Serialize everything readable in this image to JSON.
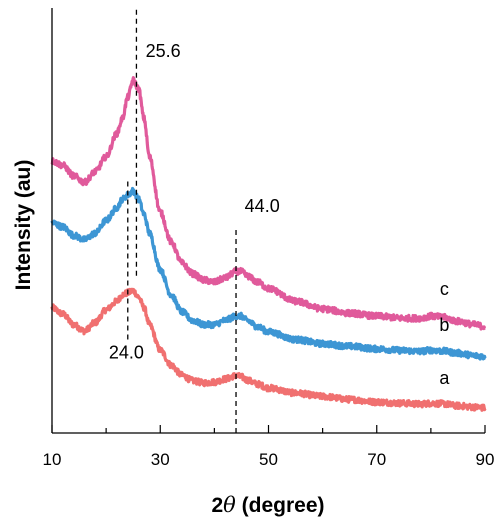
{
  "chart_data": {
    "type": "line",
    "xlabel_prefix": "2",
    "xlabel_symbol": "θ",
    "xlabel_suffix": " (degree)",
    "ylabel": "Intensity (au)",
    "xlim": [
      10,
      90
    ],
    "ylim": [
      0,
      100
    ],
    "x_ticks": [
      "10",
      "30",
      "50",
      "70",
      "90"
    ],
    "grid": false,
    "series": [
      {
        "name": "a",
        "color": "#f07070",
        "points": [
          [
            10,
            29.5
          ],
          [
            12,
            28
          ],
          [
            14,
            25.5
          ],
          [
            16,
            24
          ],
          [
            18,
            26
          ],
          [
            20,
            29
          ],
          [
            22,
            31
          ],
          [
            23,
            32.5
          ],
          [
            24,
            33
          ],
          [
            25,
            33.5
          ],
          [
            26,
            32
          ],
          [
            27,
            29.5
          ],
          [
            28,
            25.5
          ],
          [
            30,
            19.5
          ],
          [
            32,
            16
          ],
          [
            34,
            13.6
          ],
          [
            36,
            12.3
          ],
          [
            38,
            11.8
          ],
          [
            40,
            12
          ],
          [
            42,
            12.7
          ],
          [
            44,
            13.5
          ],
          [
            45,
            13.2
          ],
          [
            46,
            12.5
          ],
          [
            48,
            11.5
          ],
          [
            50,
            10.6
          ],
          [
            55,
            9.4
          ],
          [
            60,
            8.6
          ],
          [
            65,
            7.9
          ],
          [
            70,
            7.3
          ],
          [
            75,
            7
          ],
          [
            78,
            6.8
          ],
          [
            80,
            7
          ],
          [
            82,
            6.9
          ],
          [
            85,
            6.4
          ],
          [
            88,
            6.1
          ],
          [
            90,
            5.9
          ]
        ]
      },
      {
        "name": "b",
        "color": "#3d96d4",
        "points": [
          [
            10,
            49.5
          ],
          [
            12,
            48.5
          ],
          [
            14,
            46.5
          ],
          [
            16,
            45.5
          ],
          [
            18,
            47
          ],
          [
            20,
            50
          ],
          [
            22,
            53
          ],
          [
            23,
            55
          ],
          [
            24,
            56
          ],
          [
            25,
            57
          ],
          [
            26,
            55
          ],
          [
            27,
            51.5
          ],
          [
            28,
            47
          ],
          [
            30,
            38.5
          ],
          [
            32,
            32.5
          ],
          [
            34,
            28.5
          ],
          [
            36,
            26.5
          ],
          [
            38,
            25.5
          ],
          [
            40,
            25.5
          ],
          [
            42,
            26.5
          ],
          [
            44,
            27.5
          ],
          [
            45,
            27.5
          ],
          [
            46,
            26.5
          ],
          [
            48,
            25
          ],
          [
            50,
            23.8
          ],
          [
            55,
            22
          ],
          [
            60,
            21
          ],
          [
            65,
            20.4
          ],
          [
            70,
            19.8
          ],
          [
            75,
            19.4
          ],
          [
            78,
            19.2
          ],
          [
            80,
            19.5
          ],
          [
            82,
            19.3
          ],
          [
            85,
            18.8
          ],
          [
            88,
            18.2
          ],
          [
            90,
            18
          ]
        ]
      },
      {
        "name": "c",
        "color": "#e05a9b",
        "points": [
          [
            10,
            64
          ],
          [
            12,
            63
          ],
          [
            14,
            60.5
          ],
          [
            16,
            59
          ],
          [
            18,
            61.5
          ],
          [
            20,
            65
          ],
          [
            22,
            70.5
          ],
          [
            23,
            74
          ],
          [
            24,
            79
          ],
          [
            25,
            83
          ],
          [
            26,
            81
          ],
          [
            27,
            74
          ],
          [
            28,
            65
          ],
          [
            30,
            52
          ],
          [
            32,
            45
          ],
          [
            34,
            40
          ],
          [
            36,
            37.5
          ],
          [
            38,
            36
          ],
          [
            40,
            35.5
          ],
          [
            42,
            36.5
          ],
          [
            44,
            38
          ],
          [
            45,
            38
          ],
          [
            46,
            37
          ],
          [
            48,
            35.5
          ],
          [
            50,
            34
          ],
          [
            55,
            31
          ],
          [
            60,
            29.2
          ],
          [
            65,
            28.2
          ],
          [
            70,
            27.5
          ],
          [
            75,
            27
          ],
          [
            78,
            27
          ],
          [
            80,
            27.5
          ],
          [
            82,
            27.3
          ],
          [
            85,
            26.3
          ],
          [
            88,
            25.5
          ],
          [
            90,
            25
          ]
        ]
      }
    ],
    "series_labels": [
      {
        "text": "a",
        "x": 82.5,
        "y": 11.5
      },
      {
        "text": "b",
        "x": 82.5,
        "y": 24
      },
      {
        "text": "c",
        "x": 82.5,
        "y": 32.5
      }
    ],
    "reference_lines": [
      {
        "x": 24.0,
        "y_from": 22,
        "y_to": 60
      },
      {
        "x": 25.6,
        "y_from": 37,
        "y_to": 100
      },
      {
        "x": 44.0,
        "y_from": 0,
        "y_to": 48
      }
    ],
    "annotations": [
      {
        "text": "25.6",
        "x": 27.3,
        "y": 88.5
      },
      {
        "text": "44.0",
        "x": 45.6,
        "y": 52
      },
      {
        "text": "24.0",
        "x": 20.5,
        "y": 17.5
      }
    ]
  }
}
